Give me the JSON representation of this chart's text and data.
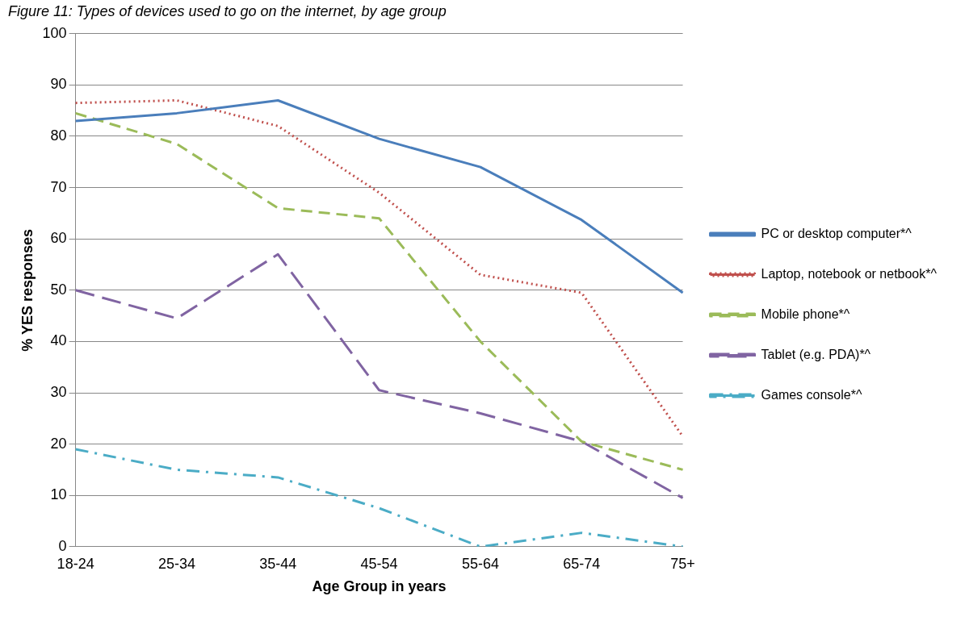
{
  "chart_data": {
    "type": "line",
    "title": "Figure 11: Types of devices used to go on the internet, by age group",
    "xlabel": "Age Group in years",
    "ylabel": "% YES responses",
    "categories": [
      "18-24",
      "25-34",
      "35-44",
      "45-54",
      "55-64",
      "65-74",
      "75+"
    ],
    "series": [
      {
        "name": "PC or desktop computer*^",
        "color": "#4a7ebb",
        "line_style": "solid",
        "values": [
          83,
          84.5,
          87,
          79.5,
          74,
          63.7,
          49.5
        ]
      },
      {
        "name": "Laptop, notebook or netbook*^",
        "color": "#c0504d",
        "line_style": "dotted",
        "values": [
          86.5,
          87,
          82,
          69,
          53,
          49.5,
          21.5
        ]
      },
      {
        "name": "Mobile phone*^",
        "color": "#9bbb59",
        "line_style": "dashed",
        "values": [
          84.5,
          78.5,
          66,
          64,
          40,
          20.5,
          15
        ]
      },
      {
        "name": "Tablet (e.g. PDA)*^",
        "color": "#8064a2",
        "line_style": "dashed",
        "values": [
          50,
          44.5,
          57,
          30.5,
          26,
          20.5,
          9.5
        ]
      },
      {
        "name": "Games console*^",
        "color": "#4bacc6",
        "line_style": "dotted",
        "values": [
          19,
          15,
          13.5,
          7.5,
          0,
          2.7,
          0
        ]
      }
    ],
    "ylim": [
      0,
      100
    ],
    "yticks": [
      0,
      10,
      20,
      30,
      40,
      50,
      60,
      70,
      80,
      90,
      100
    ],
    "grid": "y",
    "legend": "right",
    "marker": "none"
  }
}
